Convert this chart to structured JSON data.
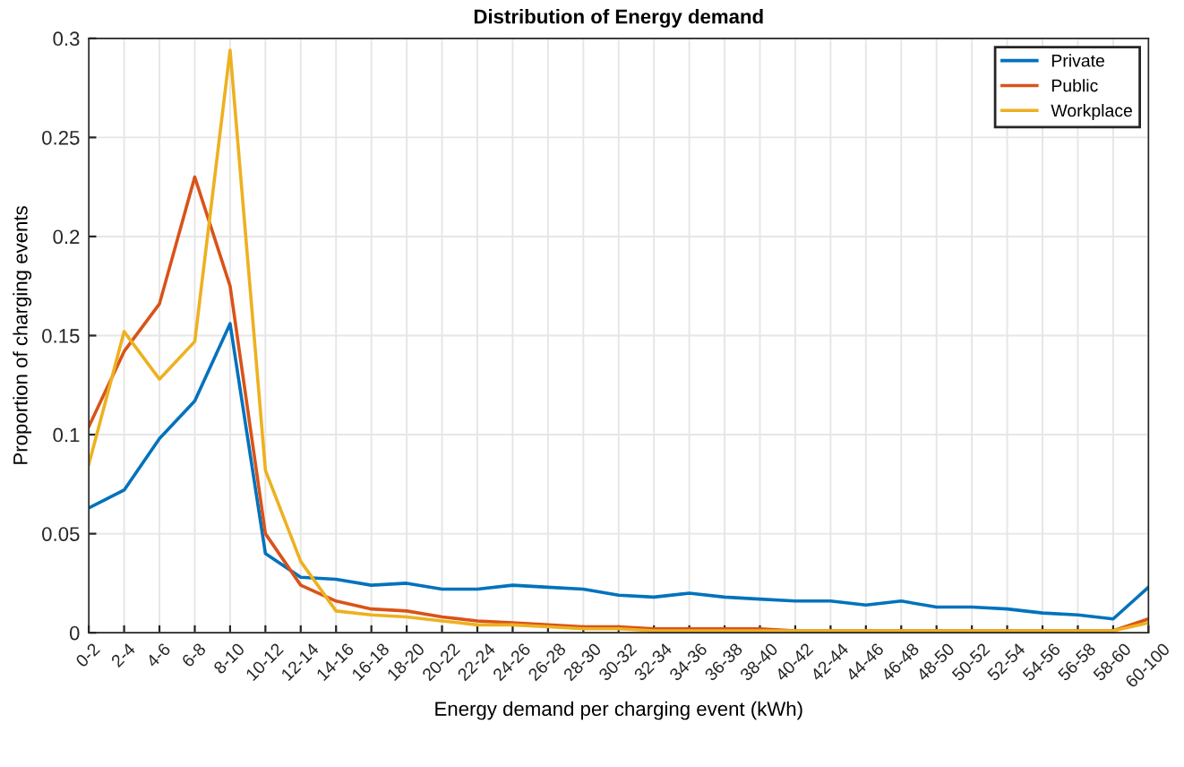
{
  "chart_data": {
    "type": "line",
    "title": "Distribution of Energy demand",
    "xlabel": "Energy demand per charging event (kWh)",
    "ylabel": "Proportion of charging events",
    "categories": [
      "0-2",
      "2-4",
      "4-6",
      "6-8",
      "8-10",
      "10-12",
      "12-14",
      "14-16",
      "16-18",
      "18-20",
      "20-22",
      "22-24",
      "24-26",
      "26-28",
      "28-30",
      "30-32",
      "32-34",
      "34-36",
      "36-38",
      "38-40",
      "40-42",
      "42-44",
      "44-46",
      "46-48",
      "48-50",
      "50-52",
      "52-54",
      "54-56",
      "56-58",
      "58-60",
      "60-100"
    ],
    "series": [
      {
        "name": "Private",
        "color": "#0072bd",
        "values": [
          0.063,
          0.072,
          0.098,
          0.117,
          0.156,
          0.04,
          0.028,
          0.027,
          0.024,
          0.025,
          0.022,
          0.022,
          0.024,
          0.023,
          0.022,
          0.019,
          0.018,
          0.02,
          0.018,
          0.017,
          0.016,
          0.016,
          0.014,
          0.016,
          0.013,
          0.013,
          0.012,
          0.01,
          0.009,
          0.007,
          0.023
        ]
      },
      {
        "name": "Public",
        "color": "#d95319",
        "values": [
          0.104,
          0.142,
          0.166,
          0.23,
          0.175,
          0.05,
          0.024,
          0.016,
          0.012,
          0.011,
          0.008,
          0.006,
          0.005,
          0.004,
          0.003,
          0.003,
          0.002,
          0.002,
          0.002,
          0.002,
          0.001,
          0.001,
          0.001,
          0.001,
          0.001,
          0.001,
          0.001,
          0.001,
          0.001,
          0.001,
          0.007
        ]
      },
      {
        "name": "Workplace",
        "color": "#edb120",
        "values": [
          0.085,
          0.152,
          0.128,
          0.147,
          0.294,
          0.082,
          0.036,
          0.011,
          0.009,
          0.008,
          0.006,
          0.004,
          0.004,
          0.003,
          0.002,
          0.002,
          0.001,
          0.001,
          0.001,
          0.001,
          0.001,
          0.001,
          0.001,
          0.001,
          0.001,
          0.001,
          0.001,
          0.001,
          0.001,
          0.001,
          0.005
        ]
      }
    ],
    "ylim": [
      0,
      0.3
    ],
    "yticks": [
      0,
      0.05,
      0.1,
      0.15,
      0.2,
      0.25,
      0.3
    ],
    "grid": true,
    "legend": "top right",
    "marker": "none",
    "line_style": "solid"
  }
}
